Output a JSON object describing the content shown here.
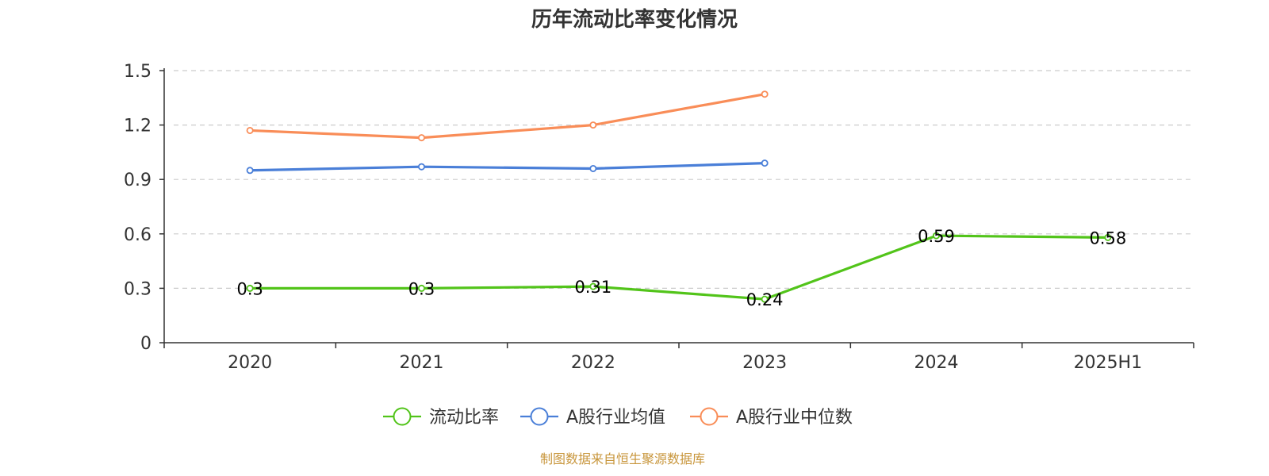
{
  "chart_data": {
    "type": "line",
    "title": "历年流动比率变化情况",
    "xlabel": "",
    "ylabel": "",
    "categories": [
      "2020",
      "2021",
      "2022",
      "2023",
      "2024",
      "2025H1"
    ],
    "yticks": [
      "0",
      "0.3",
      "0.6",
      "0.9",
      "1.2",
      "1.5"
    ],
    "ylim": [
      0,
      1.5
    ],
    "grid": true,
    "legend_position": "bottom",
    "series": [
      {
        "name": "流动比率",
        "color": "#52c41a",
        "values": [
          0.3,
          0.3,
          0.31,
          0.24,
          0.59,
          0.58
        ],
        "labels": [
          "0.3",
          "0.3",
          "0.31",
          "0.24",
          "0.59",
          "0.58"
        ],
        "show_labels": true
      },
      {
        "name": "A股行业均值",
        "color": "#4a7fd8",
        "values": [
          0.95,
          0.97,
          0.96,
          0.99,
          null,
          null
        ],
        "show_labels": false
      },
      {
        "name": "A股行业中位数",
        "color": "#f98d58",
        "values": [
          1.17,
          1.13,
          1.2,
          1.37,
          null,
          null
        ],
        "show_labels": false
      }
    ]
  },
  "footer": {
    "source": "制图数据来自恒生聚源数据库"
  }
}
